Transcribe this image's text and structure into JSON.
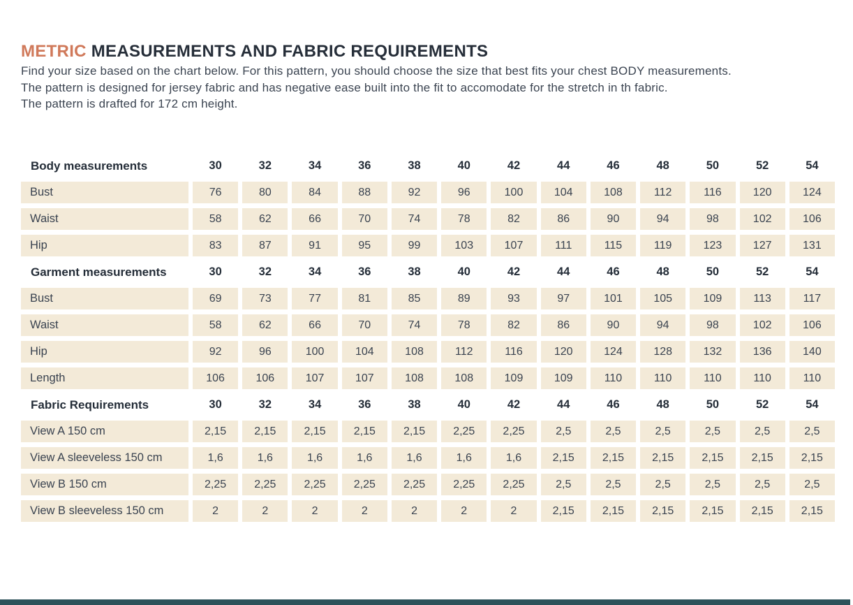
{
  "header": {
    "title_highlight": "METRIC",
    "title_rest": " MEASUREMENTS AND FABRIC REQUIREMENTS"
  },
  "intro": {
    "lines": [
      "Find your size based on the chart below. For this pattern, you should choose the size that best fits your chest BODY measurements.",
      "The pattern is designed for jersey fabric and has negative ease built into the fit to accomodate for the stretch in th fabric.",
      "The pattern is drafted for 172 cm height."
    ]
  },
  "table": {
    "sizes": [
      "30",
      "32",
      "34",
      "36",
      "38",
      "40",
      "42",
      "44",
      "46",
      "48",
      "50",
      "52",
      "54"
    ],
    "sections": [
      {
        "header": "Body measurements",
        "rows": [
          {
            "label": "Bust",
            "values": [
              "76",
              "80",
              "84",
              "88",
              "92",
              "96",
              "100",
              "104",
              "108",
              "112",
              "116",
              "120",
              "124"
            ]
          },
          {
            "label": "Waist",
            "values": [
              "58",
              "62",
              "66",
              "70",
              "74",
              "78",
              "82",
              "86",
              "90",
              "94",
              "98",
              "102",
              "106"
            ]
          },
          {
            "label": "Hip",
            "values": [
              "83",
              "87",
              "91",
              "95",
              "99",
              "103",
              "107",
              "111",
              "115",
              "119",
              "123",
              "127",
              "131"
            ]
          }
        ]
      },
      {
        "header": "Garment measurements",
        "rows": [
          {
            "label": "Bust",
            "values": [
              "69",
              "73",
              "77",
              "81",
              "85",
              "89",
              "93",
              "97",
              "101",
              "105",
              "109",
              "113",
              "117"
            ]
          },
          {
            "label": "Waist",
            "values": [
              "58",
              "62",
              "66",
              "70",
              "74",
              "78",
              "82",
              "86",
              "90",
              "94",
              "98",
              "102",
              "106"
            ]
          },
          {
            "label": "Hip",
            "values": [
              "92",
              "96",
              "100",
              "104",
              "108",
              "112",
              "116",
              "120",
              "124",
              "128",
              "132",
              "136",
              "140"
            ]
          },
          {
            "label": "Length",
            "values": [
              "106",
              "106",
              "107",
              "107",
              "108",
              "108",
              "109",
              "109",
              "110",
              "110",
              "110",
              "110",
              "110"
            ]
          }
        ]
      },
      {
        "header": "Fabric Requirements",
        "rows": [
          {
            "label": "View A 150 cm",
            "values": [
              "2,15",
              "2,15",
              "2,15",
              "2,15",
              "2,15",
              "2,25",
              "2,25",
              "2,5",
              "2,5",
              "2,5",
              "2,5",
              "2,5",
              "2,5"
            ]
          },
          {
            "label": "View A sleeveless 150 cm",
            "values": [
              "1,6",
              "1,6",
              "1,6",
              "1,6",
              "1,6",
              "1,6",
              "1,6",
              "2,15",
              "2,15",
              "2,15",
              "2,15",
              "2,15",
              "2,15"
            ]
          },
          {
            "label": "View B 150 cm",
            "values": [
              "2,25",
              "2,25",
              "2,25",
              "2,25",
              "2,25",
              "2,25",
              "2,25",
              "2,5",
              "2,5",
              "2,5",
              "2,5",
              "2,5",
              "2,5"
            ]
          },
          {
            "label": "View B sleeveless 150 cm",
            "values": [
              "2",
              "2",
              "2",
              "2",
              "2",
              "2",
              "2",
              "2,15",
              "2,15",
              "2,15",
              "2,15",
              "2,15",
              "2,15"
            ]
          }
        ]
      }
    ]
  },
  "colors": {
    "accent": "#d0795a",
    "heading": "#262e39",
    "body_text": "#3a4350",
    "cell_background": "#f3ead8",
    "footer_bar": "#2d525a"
  }
}
